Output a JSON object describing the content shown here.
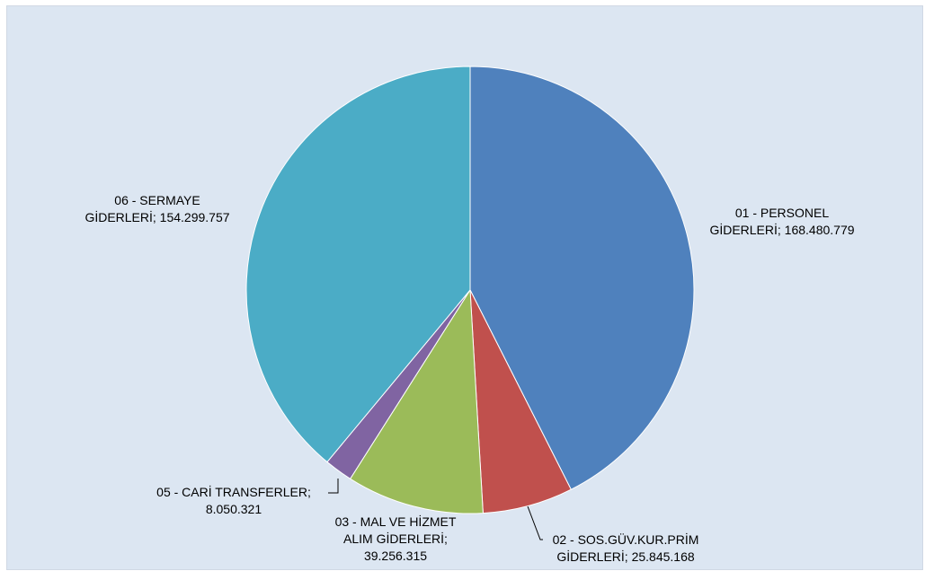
{
  "chart_data": {
    "type": "pie",
    "slices": [
      {
        "label_line1": "01 - PERSONEL",
        "label_line2": "GİDERLERİ; 168.480.779",
        "value": 168480779,
        "color": "#4f81bd"
      },
      {
        "label_line1": "02 - SOS.GÜV.KUR.PRİM",
        "label_line2": "GİDERLERİ; 25.845.168",
        "value": 25845168,
        "color": "#c0504d"
      },
      {
        "label_line1": "03 - MAL VE HİZMET",
        "label_line2": "ALIM GİDERLERİ;",
        "label_line3": "39.256.315",
        "value": 39256315,
        "color": "#9bbb59"
      },
      {
        "label_line1": "05 - CARİ TRANSFERLER;",
        "label_line2": "8.050.321",
        "value": 8050321,
        "color": "#8064a2"
      },
      {
        "label_line1": "06 - SERMAYE",
        "label_line2": "GİDERLERİ; 154.299.757",
        "value": 154299757,
        "color": "#4bacc6"
      }
    ],
    "background": "#dce6f2"
  }
}
